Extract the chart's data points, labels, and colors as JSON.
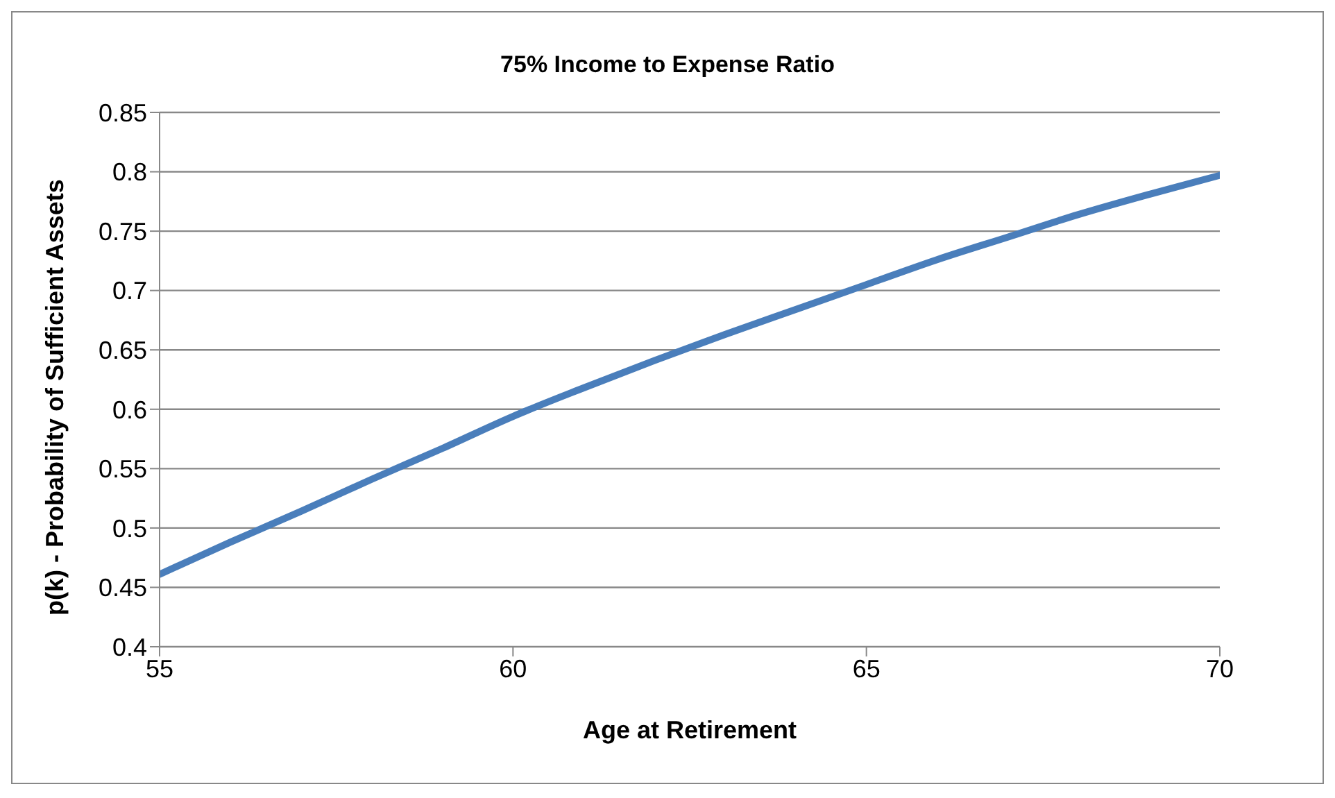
{
  "chart_data": {
    "type": "line",
    "title": "75% Income to Expense Ratio",
    "xlabel": "Age at Retirement",
    "ylabel": "p(k) - Probability of Sufficient Assets",
    "x": [
      55,
      56,
      57,
      58,
      59,
      60,
      61,
      62,
      63,
      64,
      65,
      66,
      67,
      68,
      69,
      70
    ],
    "series": [
      {
        "color": "#4a7ebb",
        "values": [
          0.461,
          0.488,
          0.514,
          0.541,
          0.567,
          0.594,
          0.618,
          0.641,
          0.663,
          0.684,
          0.705,
          0.726,
          0.745,
          0.764,
          0.781,
          0.797
        ]
      }
    ],
    "xlim": [
      55,
      70
    ],
    "xticks": [
      55,
      60,
      65,
      70
    ],
    "ylim": [
      0.4,
      0.85
    ],
    "yticks": [
      0.4,
      0.45,
      0.5,
      0.55,
      0.6,
      0.65,
      0.7,
      0.75,
      0.8,
      0.85
    ],
    "grid": "y",
    "legend": false,
    "marker": "none",
    "line_style": "solid"
  }
}
